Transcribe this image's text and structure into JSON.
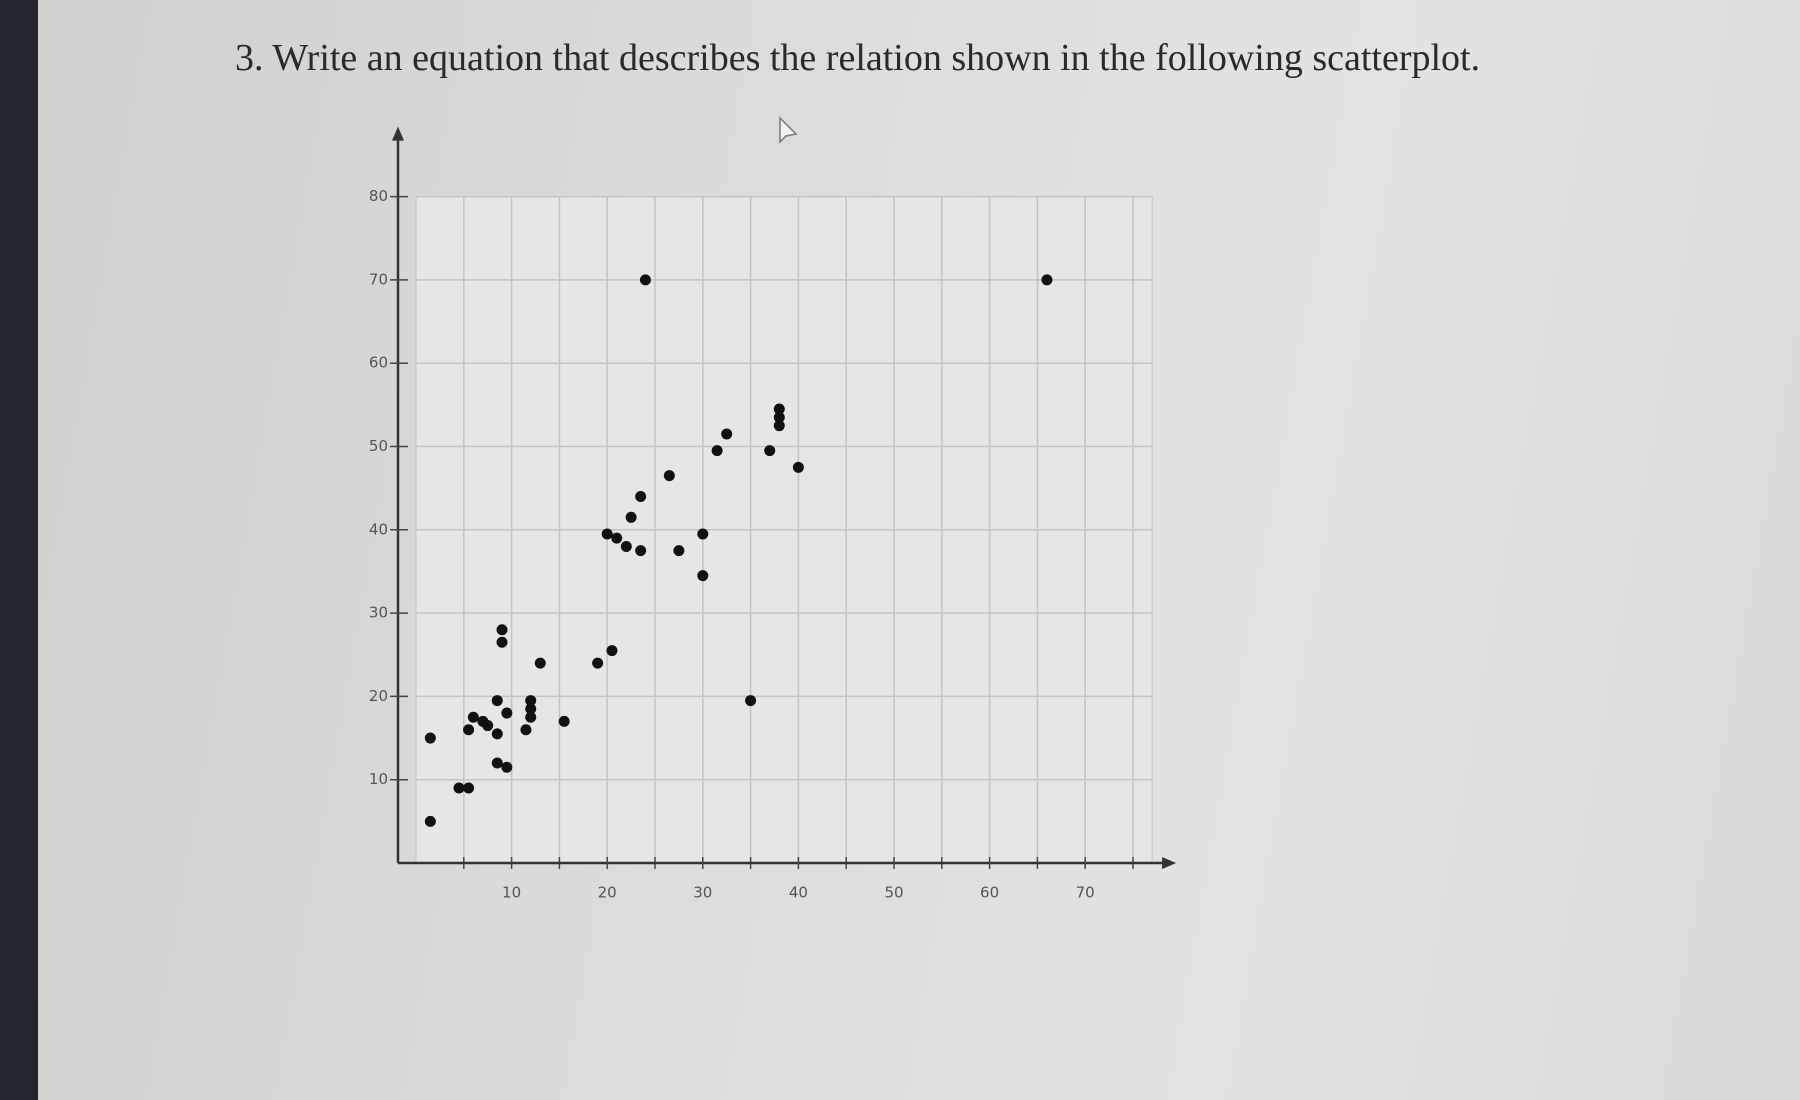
{
  "chart_data": {
    "type": "scatter",
    "title": "3.  Write an equation that describes the relation shown in the following scatterplot.",
    "x": [
      1.5,
      1.5,
      4.5,
      5.5,
      5.5,
      6,
      7,
      7.5,
      8.5,
      8.5,
      8.5,
      9.5,
      9,
      9,
      9.5,
      11.5,
      12,
      12,
      12,
      13,
      15.5,
      19,
      20.5,
      20,
      21,
      22,
      22.5,
      23.5,
      23.5,
      24,
      26.5,
      27.5,
      30,
      30,
      31.5,
      32.5,
      35,
      37,
      38,
      38,
      38,
      40,
      66
    ],
    "values": [
      15,
      5,
      9,
      9,
      16,
      17.5,
      17,
      16.5,
      19.5,
      15.5,
      12,
      18,
      28,
      26.5,
      11.5,
      16,
      19.5,
      18.5,
      17.5,
      24,
      17,
      24,
      25.5,
      39.5,
      39,
      38,
      41.5,
      44,
      37.5,
      70,
      46.5,
      37.5,
      39.5,
      34.5,
      49.5,
      51.5,
      19.5,
      49.5,
      54.5,
      53.5,
      52.5,
      47.5,
      70
    ],
    "color": "#111111",
    "xlim": [
      0,
      77
    ],
    "ylim": [
      0,
      80
    ],
    "xticks": [
      10,
      20,
      30,
      40,
      50,
      60,
      70
    ],
    "xminorticks": [
      5,
      15,
      25,
      35,
      45,
      55,
      65,
      75
    ],
    "yticks": [
      10,
      20,
      30,
      40,
      50,
      60,
      70,
      80
    ],
    "grid": true
  }
}
